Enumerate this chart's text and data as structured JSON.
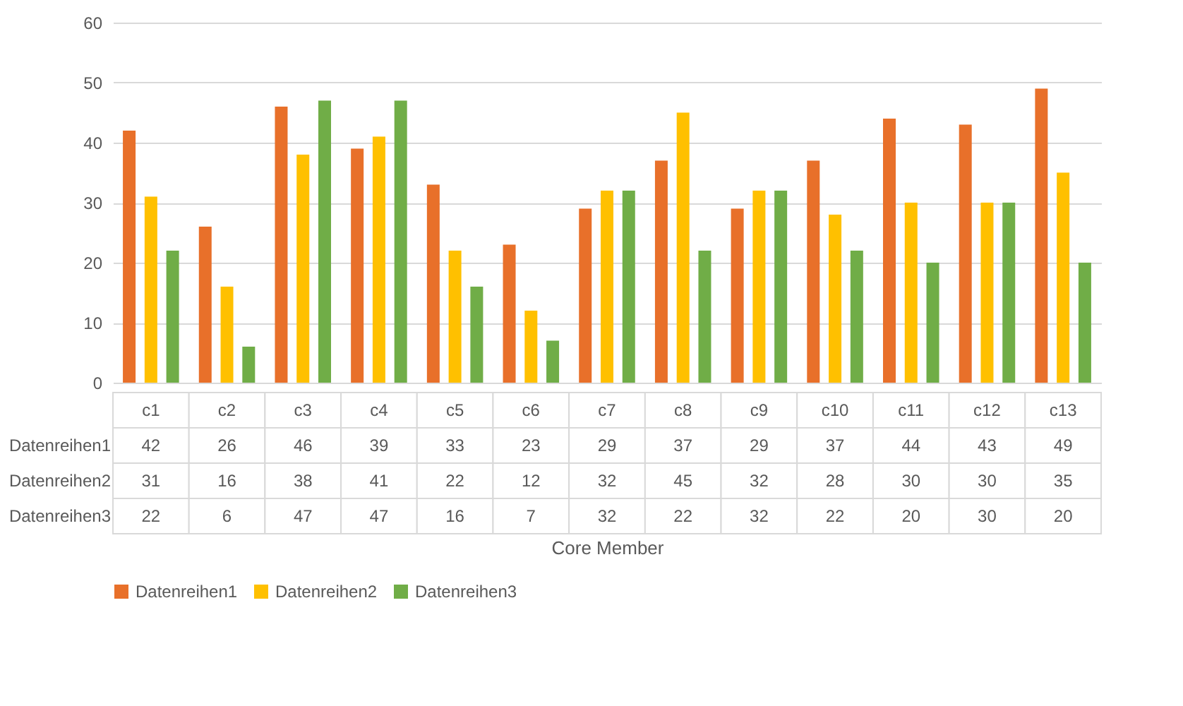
{
  "chart_data": {
    "type": "bar",
    "annotations": [
      "Core Member"
    ],
    "categories": [
      "c1",
      "c2",
      "c3",
      "c4",
      "c5",
      "c6",
      "c7",
      "c8",
      "c9",
      "c10",
      "c11",
      "c12",
      "c13"
    ],
    "series": [
      {
        "name": "Datenreihen1",
        "color": "#e8702a",
        "values": [
          42,
          26,
          46,
          39,
          33,
          23,
          29,
          37,
          29,
          37,
          44,
          43,
          49
        ]
      },
      {
        "name": "Datenreihen2",
        "color": "#ffc000",
        "values": [
          31,
          16,
          38,
          41,
          22,
          12,
          32,
          45,
          32,
          28,
          30,
          30,
          35
        ]
      },
      {
        "name": "Datenreihen3",
        "color": "#70ad47",
        "values": [
          22,
          6,
          47,
          47,
          16,
          7,
          32,
          22,
          32,
          22,
          20,
          30,
          20
        ]
      }
    ],
    "ylim": [
      0,
      60
    ],
    "yticks": [
      0,
      10,
      20,
      30,
      40,
      50,
      60
    ],
    "grid": "y",
    "legend": "bottom",
    "data_labels": true
  }
}
